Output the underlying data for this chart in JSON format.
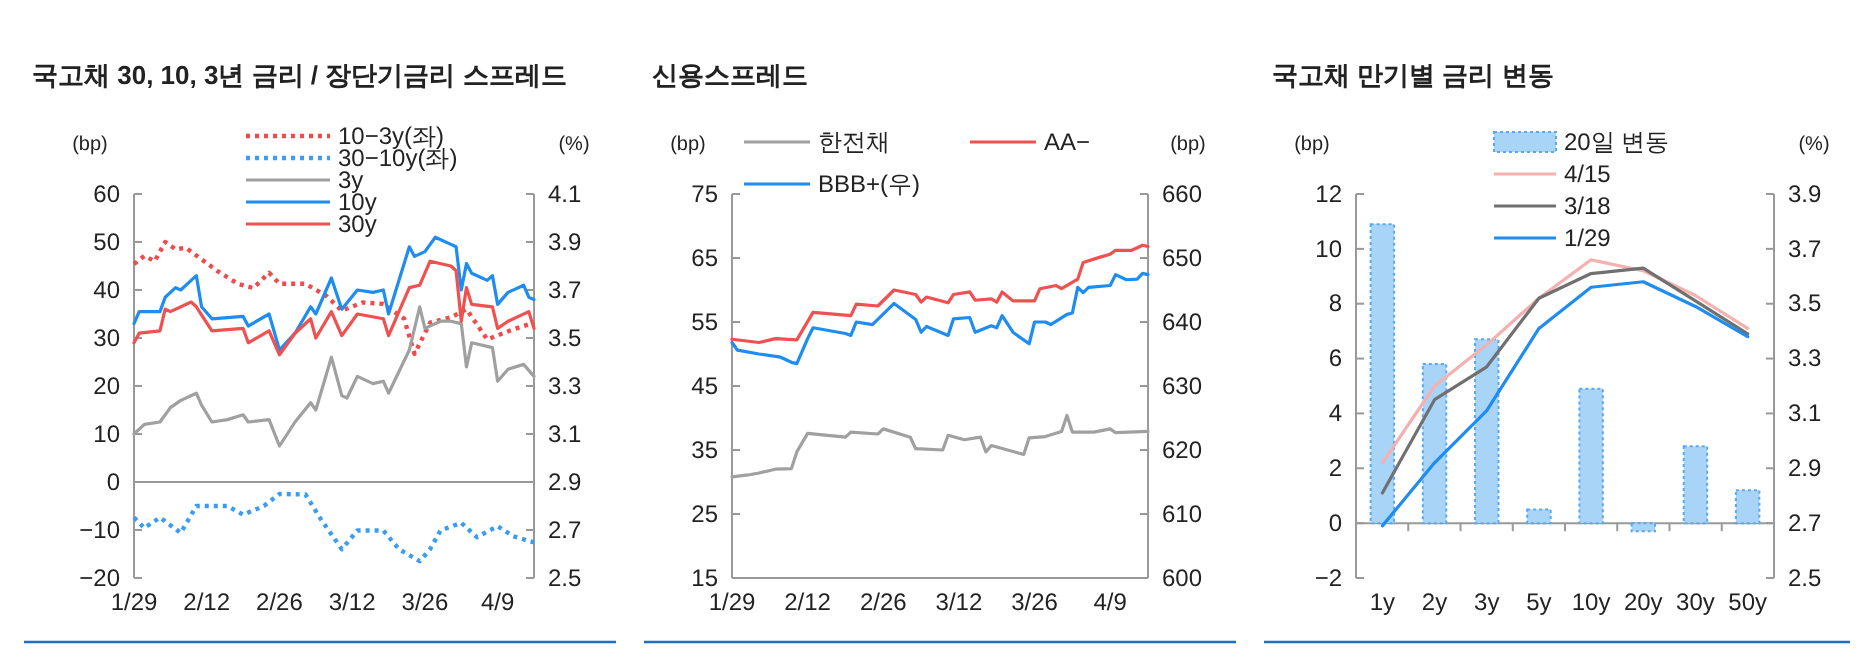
{
  "chart_data": [
    {
      "type": "line",
      "title": "국고채 30, 10, 3년 금리 / 장단기금리 스프레드",
      "ylabel": "(bp)",
      "y2label": "(%)",
      "legend": "top",
      "xlim": [
        "--01-29",
        "--04-16"
      ],
      "xticks": [
        {
          "value": "--01-29",
          "label": "1/29"
        },
        {
          "value": "--02-12",
          "label": "2/12"
        },
        {
          "value": "--02-26",
          "label": "2/26"
        },
        {
          "value": "--03-12",
          "label": "3/12"
        },
        {
          "value": "--03-26",
          "label": "3/26"
        },
        {
          "value": "--04-09",
          "label": "4/9"
        }
      ],
      "ylim": [
        -20,
        60
      ],
      "yticks": [
        -20,
        -10,
        0,
        10,
        20,
        30,
        40,
        50,
        60
      ],
      "y2lim": [
        2.5,
        4.1
      ],
      "y2ticks": [
        2.5,
        2.7,
        2.9,
        3.1,
        3.3,
        3.5,
        3.7,
        3.9,
        4.1
      ],
      "series": [
        {
          "name": "10−3y(좌)",
          "color": "#f04a4a",
          "line_style": "dotted",
          "x": [
            "--01-29",
            "--01-31",
            "--02-02",
            "--02-04",
            "--02-06",
            "--02-08",
            "--02-11",
            "--02-14",
            "--02-18",
            "--02-21",
            "--02-24",
            "--02-26",
            "--03-03",
            "--03-07",
            "--03-10",
            "--03-14",
            "--03-18",
            "--03-22",
            "--03-24",
            "--03-27",
            "--03-31",
            "--04-03",
            "--04-07",
            "--04-12",
            "--04-16"
          ],
          "values": [
            45.4,
            47.1,
            46,
            50,
            48.5,
            48.8,
            46.4,
            44,
            41.3,
            40.4,
            43.6,
            41.3,
            41.3,
            38.8,
            35.7,
            37.4,
            37.1,
            34,
            26.7,
            33.2,
            34.3,
            36,
            29.7,
            31.8,
            33.2
          ]
        },
        {
          "name": "30−10y(좌)",
          "color": "#3b9cf5",
          "line_style": "dotted",
          "x": [
            "--01-29",
            "--01-31",
            "--02-03",
            "--02-07",
            "--02-10",
            "--02-16",
            "--02-19",
            "--02-23",
            "--02-26",
            "--03-03",
            "--03-06",
            "--03-10",
            "--03-13",
            "--03-18",
            "--03-21",
            "--03-25",
            "--03-27",
            "--03-29",
            "--04-02",
            "--04-05",
            "--04-09",
            "--04-12",
            "--04-16"
          ],
          "values": [
            -7.4,
            -9.6,
            -7.4,
            -10.6,
            -5,
            -5,
            -6.8,
            -5,
            -2.5,
            -2.6,
            -7.8,
            -14,
            -10.1,
            -10.1,
            -14,
            -16.5,
            -14,
            -10.1,
            -8.5,
            -11.5,
            -9.2,
            -11.3,
            -12.6
          ]
        },
        {
          "name": "3y",
          "color": "#a0a0a0",
          "axis": "y2",
          "x": [
            "--01-29",
            "--01-31",
            "--02-03",
            "--02-05",
            "--02-07",
            "--02-10",
            "--02-11",
            "--02-13",
            "--02-16",
            "--02-19",
            "--02-20",
            "--02-24",
            "--02-26",
            "--03-01",
            "--03-04",
            "--03-05",
            "--03-08",
            "--03-10",
            "--03-11",
            "--03-13",
            "--03-16",
            "--03-18",
            "--03-19",
            "--03-23",
            "--03-25",
            "--03-26",
            "--03-29",
            "--03-31",
            "--04-02",
            "--04-03",
            "--04-04",
            "--04-08",
            "--04-09",
            "--04-11",
            "--04-14",
            "--04-16"
          ],
          "values": [
            3.1,
            3.14,
            3.15,
            3.21,
            3.24,
            3.27,
            3.22,
            3.15,
            3.16,
            3.18,
            3.15,
            3.16,
            3.05,
            3.15,
            3.23,
            3.2,
            3.42,
            3.26,
            3.25,
            3.34,
            3.31,
            3.32,
            3.27,
            3.45,
            3.63,
            3.54,
            3.57,
            3.57,
            3.56,
            3.38,
            3.48,
            3.46,
            3.32,
            3.37,
            3.39,
            3.34
          ]
        },
        {
          "name": "10y",
          "color": "#1e8cf0",
          "axis": "y2",
          "x": [
            "--01-29",
            "--01-30",
            "--02-03",
            "--02-04",
            "--02-06",
            "--02-07",
            "--02-09",
            "--02-10",
            "--02-11",
            "--02-13",
            "--02-19",
            "--02-20",
            "--02-24",
            "--02-26",
            "--03-01",
            "--03-04",
            "--03-05",
            "--03-08",
            "--03-10",
            "--03-13",
            "--03-16",
            "--03-18",
            "--03-19",
            "--03-23",
            "--03-24",
            "--03-26",
            "--03-28",
            "--03-31",
            "--04-01",
            "--04-02",
            "--04-03",
            "--04-04",
            "--04-07",
            "--04-08",
            "--04-09",
            "--04-11",
            "--04-14",
            "--04-15",
            "--04-16"
          ],
          "values": [
            3.56,
            3.61,
            3.61,
            3.67,
            3.71,
            3.7,
            3.74,
            3.76,
            3.63,
            3.58,
            3.59,
            3.55,
            3.6,
            3.45,
            3.52,
            3.63,
            3.6,
            3.75,
            3.62,
            3.7,
            3.69,
            3.7,
            3.6,
            3.88,
            3.84,
            3.86,
            3.92,
            3.89,
            3.88,
            3.7,
            3.81,
            3.77,
            3.74,
            3.76,
            3.64,
            3.69,
            3.72,
            3.67,
            3.66
          ]
        },
        {
          "name": "30y",
          "color": "#f05050",
          "axis": "y2",
          "x": [
            "--01-29",
            "--01-30",
            "--02-03",
            "--02-04",
            "--02-05",
            "--02-09",
            "--02-10",
            "--02-13",
            "--02-19",
            "--02-20",
            "--02-24",
            "--02-26",
            "--03-01",
            "--03-04",
            "--03-05",
            "--03-08",
            "--03-10",
            "--03-13",
            "--03-18",
            "--03-19",
            "--03-23",
            "--03-25",
            "--03-27",
            "--03-31",
            "--04-01",
            "--04-02",
            "--04-03",
            "--04-04",
            "--04-08",
            "--04-09",
            "--04-11",
            "--04-15",
            "--04-16"
          ],
          "values": [
            3.48,
            3.52,
            3.53,
            3.62,
            3.61,
            3.65,
            3.63,
            3.53,
            3.54,
            3.48,
            3.53,
            3.43,
            3.52,
            3.58,
            3.5,
            3.61,
            3.51,
            3.6,
            3.58,
            3.51,
            3.71,
            3.72,
            3.82,
            3.8,
            3.78,
            3.57,
            3.71,
            3.64,
            3.63,
            3.54,
            3.57,
            3.61,
            3.54
          ]
        }
      ]
    },
    {
      "type": "line",
      "title": "신용스프레드",
      "ylabel": "(bp)",
      "y2label": "(bp)",
      "legend": "top",
      "xlim": [
        "--01-29",
        "--04-16"
      ],
      "xticks": [
        {
          "value": "--01-29",
          "label": "1/29"
        },
        {
          "value": "--02-12",
          "label": "2/12"
        },
        {
          "value": "--02-26",
          "label": "2/26"
        },
        {
          "value": "--03-12",
          "label": "3/12"
        },
        {
          "value": "--03-26",
          "label": "3/26"
        },
        {
          "value": "--04-09",
          "label": "4/9"
        }
      ],
      "ylim": [
        15,
        75
      ],
      "yticks": [
        15,
        25,
        35,
        45,
        55,
        65,
        75
      ],
      "y2lim": [
        600,
        660
      ],
      "y2ticks": [
        600,
        610,
        620,
        630,
        640,
        650,
        660
      ],
      "series": [
        {
          "name": "한전채",
          "color": "#a0a0a0",
          "x": [
            "--01-29",
            "--02-01",
            "--02-03",
            "--02-06",
            "--02-09",
            "--02-10",
            "--02-12",
            "--02-19",
            "--02-20",
            "--02-25",
            "--02-26",
            "--03-03",
            "--03-04",
            "--03-09",
            "--03-10",
            "--03-13",
            "--03-16",
            "--03-17",
            "--03-18",
            "--03-24",
            "--03-25",
            "--03-28",
            "--03-31",
            "--04-01",
            "--04-02",
            "--04-06",
            "--04-09",
            "--04-10",
            "--04-16"
          ],
          "values": [
            30.8,
            31.1,
            31.4,
            32,
            32.1,
            34.7,
            37.6,
            37,
            37.8,
            37.5,
            38.3,
            37,
            35.2,
            35,
            37.3,
            36.6,
            37,
            34.7,
            35.7,
            34.3,
            36.9,
            37.1,
            37.9,
            40.4,
            37.8,
            37.8,
            38.3,
            37.7,
            37.9
          ]
        },
        {
          "name": "AA−",
          "color": "#f05050",
          "x": [
            "--01-29",
            "--02-03",
            "--02-06",
            "--02-10",
            "--02-13",
            "--02-20",
            "--02-21",
            "--02-25",
            "--02-28",
            "--03-04",
            "--03-05",
            "--03-06",
            "--03-10",
            "--03-11",
            "--03-14",
            "--03-15",
            "--03-18",
            "--03-19",
            "--03-20",
            "--03-22",
            "--03-26",
            "--03-27",
            "--03-30",
            "--03-31",
            "--04-03",
            "--04-04",
            "--04-07",
            "--04-09",
            "--04-10",
            "--04-13",
            "--04-15",
            "--04-16"
          ],
          "values": [
            52.3,
            51.8,
            52.4,
            52.2,
            56.5,
            56,
            57.8,
            57.5,
            60,
            59.3,
            58.1,
            58.9,
            58,
            59.3,
            59.7,
            58.4,
            58.6,
            58.1,
            59.7,
            58.3,
            58.3,
            60.2,
            60.7,
            60.2,
            61.7,
            64.3,
            65.1,
            65.6,
            66.2,
            66.2,
            67,
            66.8
          ]
        },
        {
          "name": "BBB+(우)",
          "color": "#1e8cf0",
          "axis": "y2",
          "x": [
            "--01-29",
            "--01-30",
            "--02-03",
            "--02-07",
            "--02-09",
            "--02-10",
            "--02-12",
            "--02-13",
            "--02-19",
            "--02-20",
            "--02-21",
            "--02-24",
            "--02-28",
            "--03-04",
            "--03-05",
            "--03-06",
            "--03-10",
            "--03-11",
            "--03-14",
            "--03-15",
            "--03-18",
            "--03-19",
            "--03-20",
            "--03-22",
            "--03-25",
            "--03-26",
            "--03-28",
            "--03-29",
            "--04-01",
            "--04-02",
            "--04-03",
            "--04-04",
            "--04-05",
            "--04-09",
            "--04-10",
            "--04-12",
            "--04-14",
            "--04-15",
            "--04-16"
          ],
          "values": [
            636.8,
            635.6,
            635,
            634.5,
            633.7,
            633.5,
            637.4,
            639.1,
            638.2,
            637.9,
            640,
            639.6,
            642.9,
            640.4,
            638.4,
            639.3,
            637.9,
            640.5,
            640.7,
            638.4,
            639.4,
            639.1,
            641,
            638.4,
            636.6,
            640,
            640,
            639.6,
            641.2,
            641.4,
            645.4,
            644.6,
            645.4,
            645.7,
            647.4,
            646.6,
            646.7,
            647.6,
            647.4
          ]
        }
      ]
    },
    {
      "type": "bar",
      "title": "국고채 만기별 금리 변동",
      "ylabel": "(bp)",
      "y2label": "(%)",
      "legend": "top",
      "categories": [
        "1y",
        "2y",
        "3y",
        "5y",
        "10y",
        "20y",
        "30y",
        "50y"
      ],
      "ylim": [
        -2,
        12
      ],
      "yticks": [
        -2,
        0,
        2,
        4,
        6,
        8,
        10,
        12
      ],
      "y2lim": [
        2.5,
        3.9
      ],
      "y2ticks": [
        2.5,
        2.7,
        2.9,
        3.1,
        3.3,
        3.5,
        3.7,
        3.9
      ],
      "series": [
        {
          "name": "20일 변동",
          "color": "#a8d4f8",
          "values": [
            10.9,
            5.8,
            6.7,
            0.5,
            4.9,
            -0.3,
            2.8,
            1.2
          ]
        },
        {
          "name": "4/15",
          "type": "line",
          "axis": "y2",
          "color": "#f5b0b0",
          "values": [
            2.92,
            3.2,
            3.35,
            3.52,
            3.66,
            3.62,
            3.53,
            3.41
          ]
        },
        {
          "name": "3/18",
          "type": "line",
          "axis": "y2",
          "color": "#707070",
          "values": [
            2.81,
            3.15,
            3.27,
            3.52,
            3.61,
            3.63,
            3.51,
            3.39
          ]
        },
        {
          "name": "1/29",
          "type": "line",
          "axis": "y2",
          "color": "#1e8cf0",
          "values": [
            2.69,
            2.92,
            3.11,
            3.41,
            3.56,
            3.58,
            3.49,
            3.38
          ]
        }
      ]
    }
  ]
}
